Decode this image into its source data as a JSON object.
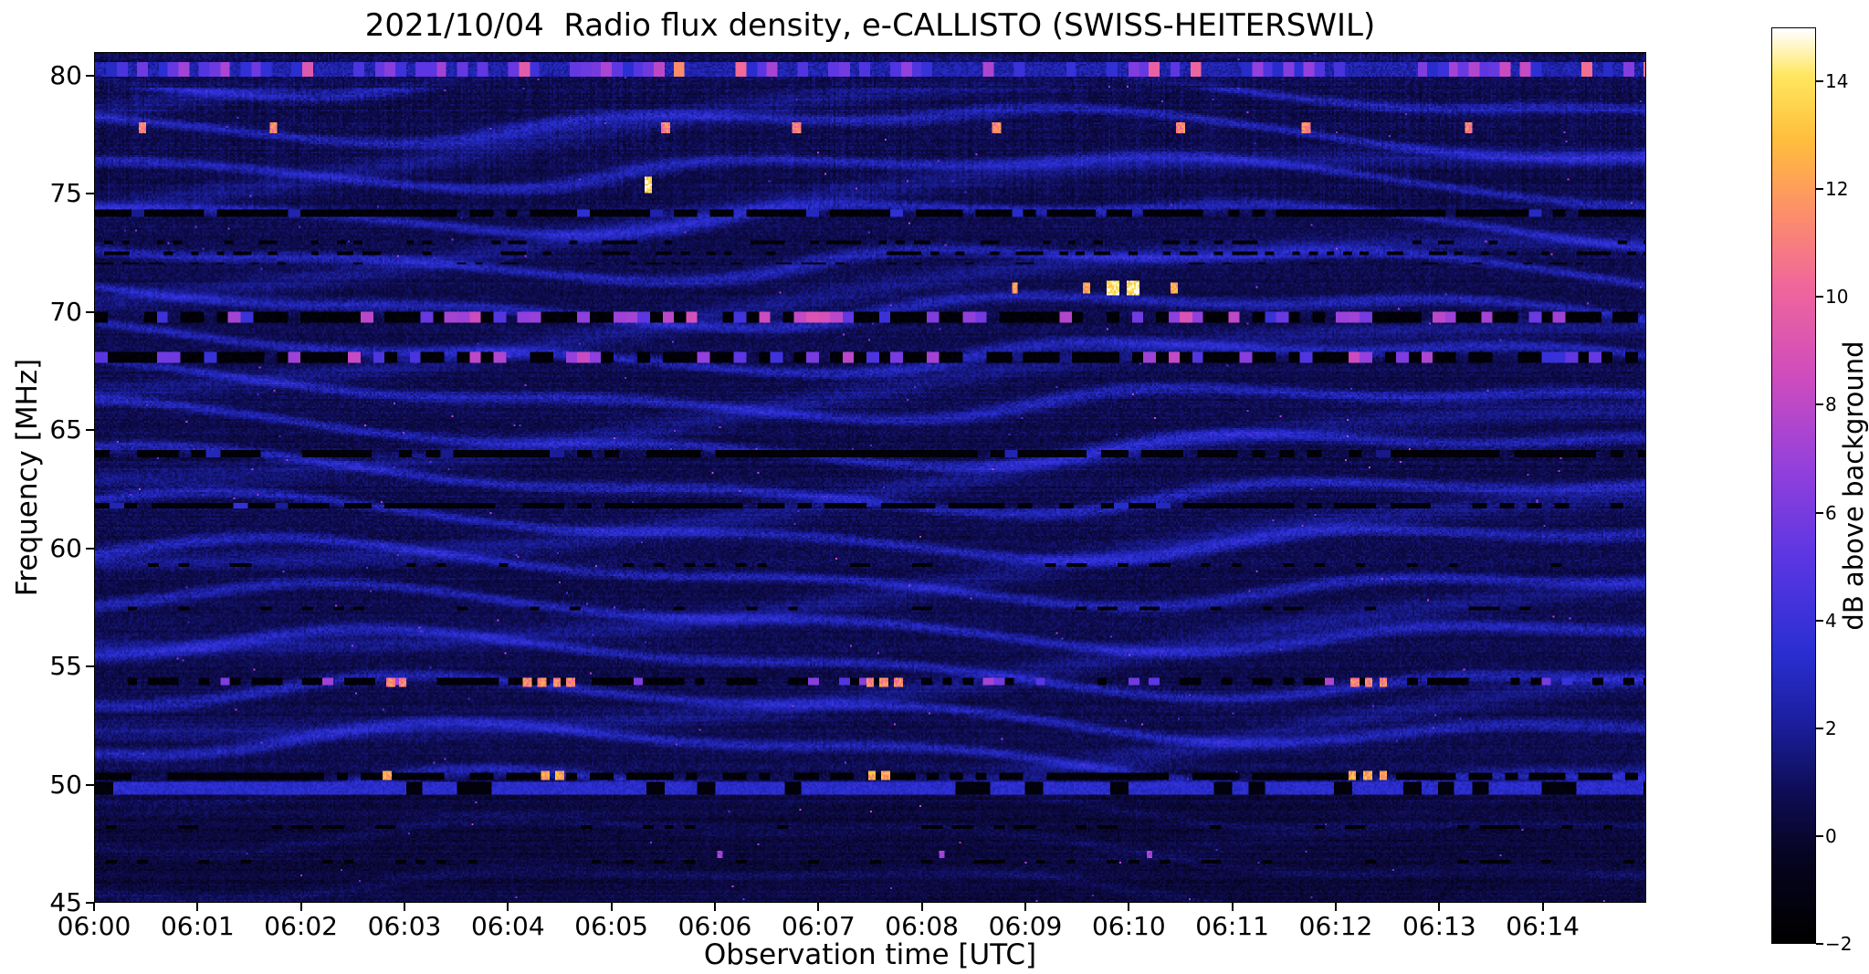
{
  "chart_data": {
    "type": "heatmap",
    "title": "2021/10/04  Radio flux density, e-CALLISTO (SWISS-HEITERSWIL)",
    "date": "2021/10/04",
    "instrument": "e-CALLISTO",
    "station": "SWISS-HEITERSWIL",
    "xlabel": "Observation time [UTC]",
    "ylabel": "Frequency [MHz]",
    "colorbar_label": "dB above background",
    "x_range_minutes": [
      0,
      15
    ],
    "x_tick_labels": [
      "06:00",
      "06:01",
      "06:02",
      "06:03",
      "06:04",
      "06:05",
      "06:06",
      "06:07",
      "06:08",
      "06:09",
      "06:10",
      "06:11",
      "06:12",
      "06:13",
      "06:14"
    ],
    "y_range_mhz": [
      45,
      81
    ],
    "y_tick_labels": [
      80,
      75,
      70,
      65,
      60,
      55,
      50,
      45
    ],
    "value_range_db": [
      -2,
      15
    ],
    "colorbar_tick_values": [
      14,
      12,
      10,
      8,
      6,
      4,
      2,
      0,
      -2
    ],
    "colorbar_tick_labels": [
      "14",
      "12",
      "10",
      "8",
      "6",
      "4",
      "2",
      "0",
      "−2"
    ],
    "colormap_stops": [
      [
        0.0,
        "#000000"
      ],
      [
        0.09,
        "#06041f"
      ],
      [
        0.16,
        "#0e0c52"
      ],
      [
        0.24,
        "#1b1f9e"
      ],
      [
        0.32,
        "#2b2fd4"
      ],
      [
        0.42,
        "#5b36e2"
      ],
      [
        0.52,
        "#9440dc"
      ],
      [
        0.62,
        "#cf4cbe"
      ],
      [
        0.72,
        "#f0679b"
      ],
      [
        0.8,
        "#fd8f6a"
      ],
      [
        0.88,
        "#ffbe3c"
      ],
      [
        0.95,
        "#ffe75e"
      ],
      [
        1.0,
        "#ffffff"
      ]
    ],
    "background_noise": {
      "base_db": 0.0,
      "noise_amp_db": 1.2,
      "ripple_amp_db": 1.9,
      "quiet_below_mhz": 49.55,
      "description": "Dark-blue noise floor with slowly drifting wavy interference ripples (~2 MHz spacing) across 50-79 MHz; quieter below 49.5 MHz."
    },
    "rfi_bands": [
      {
        "freq": 80.35,
        "halfwidth": 0.3,
        "kind": "colorful_blocks",
        "cell_s": 6
      },
      {
        "freq": 74.2,
        "halfwidth": 0.16,
        "kind": "dark_bursts",
        "duty": 0.75,
        "burst_prob": 0.05,
        "burst_db": 3,
        "cell_s": 7
      },
      {
        "freq": 73.0,
        "halfwidth": 0.07,
        "kind": "dark",
        "duty": 0.3,
        "cell_s": 5
      },
      {
        "freq": 72.55,
        "halfwidth": 0.07,
        "kind": "dark",
        "duty": 0.3,
        "cell_s": 5
      },
      {
        "freq": 72.1,
        "halfwidth": 0.07,
        "kind": "dark",
        "duty": 0.25,
        "cell_s": 5
      },
      {
        "freq": 69.8,
        "halfwidth": 0.24,
        "kind": "dark_bursts",
        "duty": 0.5,
        "burst_prob": 0.3,
        "burst_db": 7,
        "cell_s": 7
      },
      {
        "freq": 68.1,
        "halfwidth": 0.24,
        "kind": "dark_bursts",
        "duty": 0.55,
        "burst_prob": 0.25,
        "burst_db": 6.5,
        "cell_s": 7
      },
      {
        "freq": 64.0,
        "halfwidth": 0.15,
        "kind": "dark_bursts",
        "duty": 0.7,
        "burst_prob": 0.08,
        "burst_db": 3,
        "cell_s": 8
      },
      {
        "freq": 61.8,
        "halfwidth": 0.14,
        "kind": "dark_bursts",
        "duty": 0.65,
        "burst_prob": 0.07,
        "burst_db": 3,
        "cell_s": 8
      },
      {
        "freq": 59.3,
        "halfwidth": 0.07,
        "kind": "dark",
        "duty": 0.25,
        "cell_s": 6
      },
      {
        "freq": 57.4,
        "halfwidth": 0.07,
        "kind": "dark",
        "duty": 0.2,
        "cell_s": 6
      },
      {
        "freq": 54.32,
        "halfwidth": 0.15,
        "kind": "dark_bursts",
        "duty": 0.5,
        "burst_prob": 0.12,
        "burst_db": 6,
        "cell_s": 6
      },
      {
        "freq": 50.32,
        "halfwidth": 0.14,
        "kind": "dark",
        "duty": 0.75,
        "cell_s": 7
      },
      {
        "freq": 49.8,
        "halfwidth": 0.27,
        "kind": "blocks",
        "duty": 0.82,
        "on_db": 2.6,
        "off_db": -1.6,
        "cell_s": 10
      },
      {
        "freq": 48.1,
        "halfwidth": 0.08,
        "kind": "dark",
        "duty": 0.3,
        "cell_s": 6
      },
      {
        "freq": 46.7,
        "halfwidth": 0.08,
        "kind": "dark",
        "duty": 0.25,
        "cell_s": 6
      }
    ],
    "bursts": [
      {
        "freq": 77.85,
        "times_min": [
          0.45,
          1.72,
          5.52,
          6.78,
          8.72,
          10.5,
          11.72,
          13.3
        ],
        "db": 11,
        "dur_s": 5,
        "height_mhz": 0.22
      },
      {
        "freq": 75.45,
        "times_min": [
          5.35
        ],
        "db": 14,
        "dur_s": 5,
        "height_mhz": 0.35
      },
      {
        "freq": 71.05,
        "times_min": [
          9.85,
          10.05
        ],
        "db": 14,
        "dur_s": 7,
        "height_mhz": 0.3
      },
      {
        "freq": 71.05,
        "times_min": [
          8.9,
          9.6,
          10.45
        ],
        "db": 12,
        "dur_s": 4,
        "height_mhz": 0.25
      },
      {
        "freq": 54.32,
        "times_min": [
          2.85,
          2.97,
          4.18,
          4.32,
          4.47,
          4.6,
          7.5,
          7.63,
          7.77,
          12.2,
          12.33,
          12.47
        ],
        "db": 11,
        "dur_s": 5,
        "height_mhz": 0.2
      },
      {
        "freq": 50.32,
        "times_min": [
          2.82,
          4.35,
          4.5,
          7.52,
          7.65,
          12.17,
          12.32,
          12.47
        ],
        "db": 12,
        "dur_s": 5,
        "height_mhz": 0.2
      },
      {
        "freq": 47.0,
        "times_min": [
          6.05,
          8.2,
          10.2
        ],
        "db": 7,
        "dur_s": 3,
        "height_mhz": 0.15
      }
    ],
    "legend_position": "right-colorbar",
    "grid": false
  }
}
